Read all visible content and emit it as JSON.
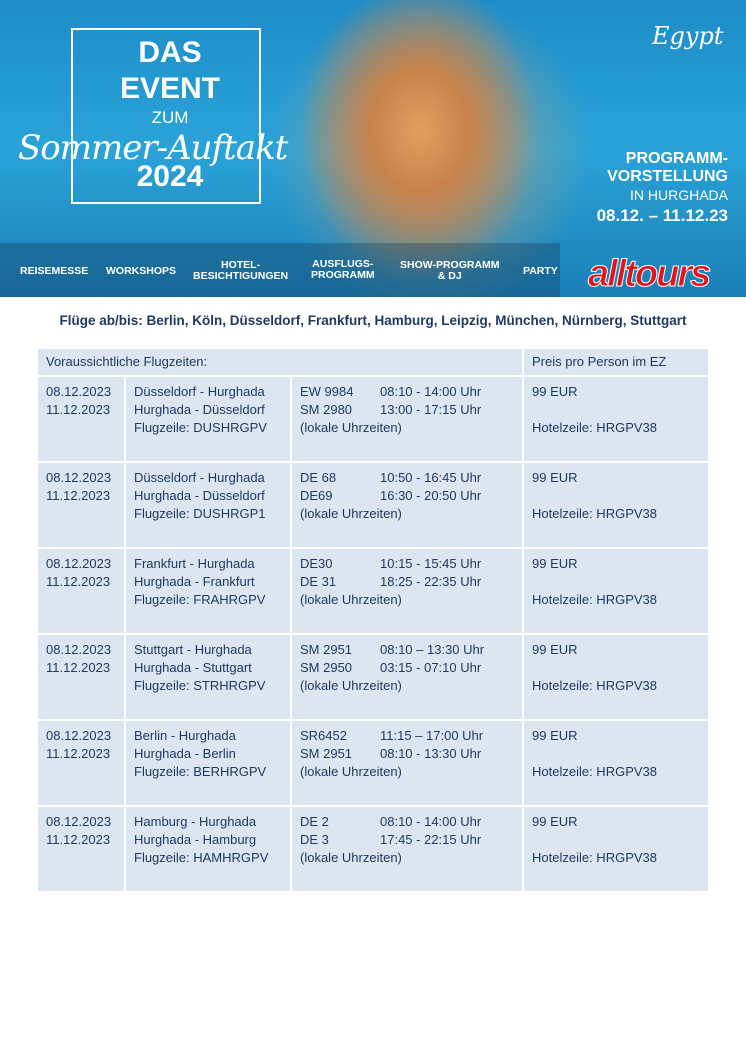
{
  "hero": {
    "title_line1": "DAS",
    "title_line2": "EVENT",
    "title_line3": "ZUM",
    "title_script": "Sommer-Auftakt",
    "title_year": "2024",
    "egypt_logo": "Egypt",
    "program_line1": "PROGRAMM-",
    "program_line2": "VORSTELLUNG",
    "program_line3": "IN HURGHADA",
    "program_dates": "08.12. – 11.12.23",
    "nav": [
      "REISEMESSE",
      "WORKSHOPS",
      "HOTEL-\nBESICHTIGUNGEN",
      "AUSFLUGS-\nPROGRAMM",
      "SHOW-PROGRAMM\n& DJ",
      "PARTY"
    ],
    "brand_logo": "alltours"
  },
  "flights_line": "Flüge ab/bis: Berlin, Köln, Düsseldorf, Frankfurt, Hamburg, Leipzig, München, Nürnberg, Stuttgart",
  "table": {
    "header_left": "Voraussichtliche Flugzeiten:",
    "header_right": "Preis pro Person im EZ",
    "rows": [
      {
        "date1": "08.12.2023",
        "date2": "11.12.2023",
        "route1": "Düsseldorf - Hurghada",
        "route2": "Hurghada - Düsseldorf",
        "code": "Flugzeile: DUSHRGPV",
        "f1": "EW 9984",
        "t1": "08:10 - 14:00 Uhr",
        "f2": "SM 2980",
        "t2": "13:00 - 17:15 Uhr",
        "note": "(lokale Uhrzeiten)",
        "price": "99 EUR",
        "hotel": "Hotelzeile: HRGPV38"
      },
      {
        "date1": "08.12.2023",
        "date2": "11.12.2023",
        "route1": "Düsseldorf - Hurghada",
        "route2": "Hurghada - Düsseldorf",
        "code": "Flugzeile: DUSHRGP1",
        "f1": "DE 68",
        "t1": "10:50 - 16:45 Uhr",
        "f2": "DE69",
        "t2": "16:30 - 20:50  Uhr",
        "note": "(lokale Uhrzeiten)",
        "price": "99 EUR",
        "hotel": "Hotelzeile: HRGPV38"
      },
      {
        "date1": "08.12.2023",
        "date2": "11.12.2023",
        "route1": "Frankfurt - Hurghada",
        "route2": "Hurghada - Frankfurt",
        "code": "Flugzeile: FRAHRGPV",
        "f1": "DE30",
        "t1": "10:15 - 15:45 Uhr",
        "f2": "DE 31",
        "t2": "18:25 - 22:35 Uhr",
        "note": "(lokale Uhrzeiten)",
        "price": "99 EUR",
        "hotel": "Hotelzeile: HRGPV38"
      },
      {
        "date1": "08.12.2023",
        "date2": "11.12.2023",
        "route1": "Stuttgart - Hurghada",
        "route2": "Hurghada - Stuttgart",
        "code": "Flugzeile: STRHRGPV",
        "f1": "SM 2951",
        "t1": "08:10 – 13:30 Uhr",
        "f2": "SM 2950",
        "t2": "03:15 - 07:10 Uhr",
        "note": "(lokale Uhrzeiten)",
        "price": "99 EUR",
        "hotel": "Hotelzeile: HRGPV38"
      },
      {
        "date1": "08.12.2023",
        "date2": "11.12.2023",
        "route1": "Berlin - Hurghada",
        "route2": "Hurghada - Berlin",
        "code": "Flugzeile: BERHRGPV",
        "f1": "SR6452",
        "t1": "11:15 – 17:00 Uhr",
        "f2": "SM 2951",
        "t2": " 08:10 - 13:30 Uhr",
        "note": "(lokale Uhrzeiten)",
        "price": "99 EUR",
        "hotel": "Hotelzeile: HRGPV38"
      },
      {
        "date1": "08.12.2023",
        "date2": "11.12.2023",
        "route1": "Hamburg - Hurghada",
        "route2": "Hurghada - Hamburg",
        "code": "Flugzeile: HAMHRGPV",
        "f1": "DE 2",
        "t1": "08:10 - 14:00 Uhr",
        "f2": "DE 3",
        "t2": "17:45 - 22:15 Uhr",
        "note": "(lokale Uhrzeiten)",
        "price": "99 EUR",
        "hotel": "Hotelzeile: HRGPV38"
      }
    ]
  }
}
